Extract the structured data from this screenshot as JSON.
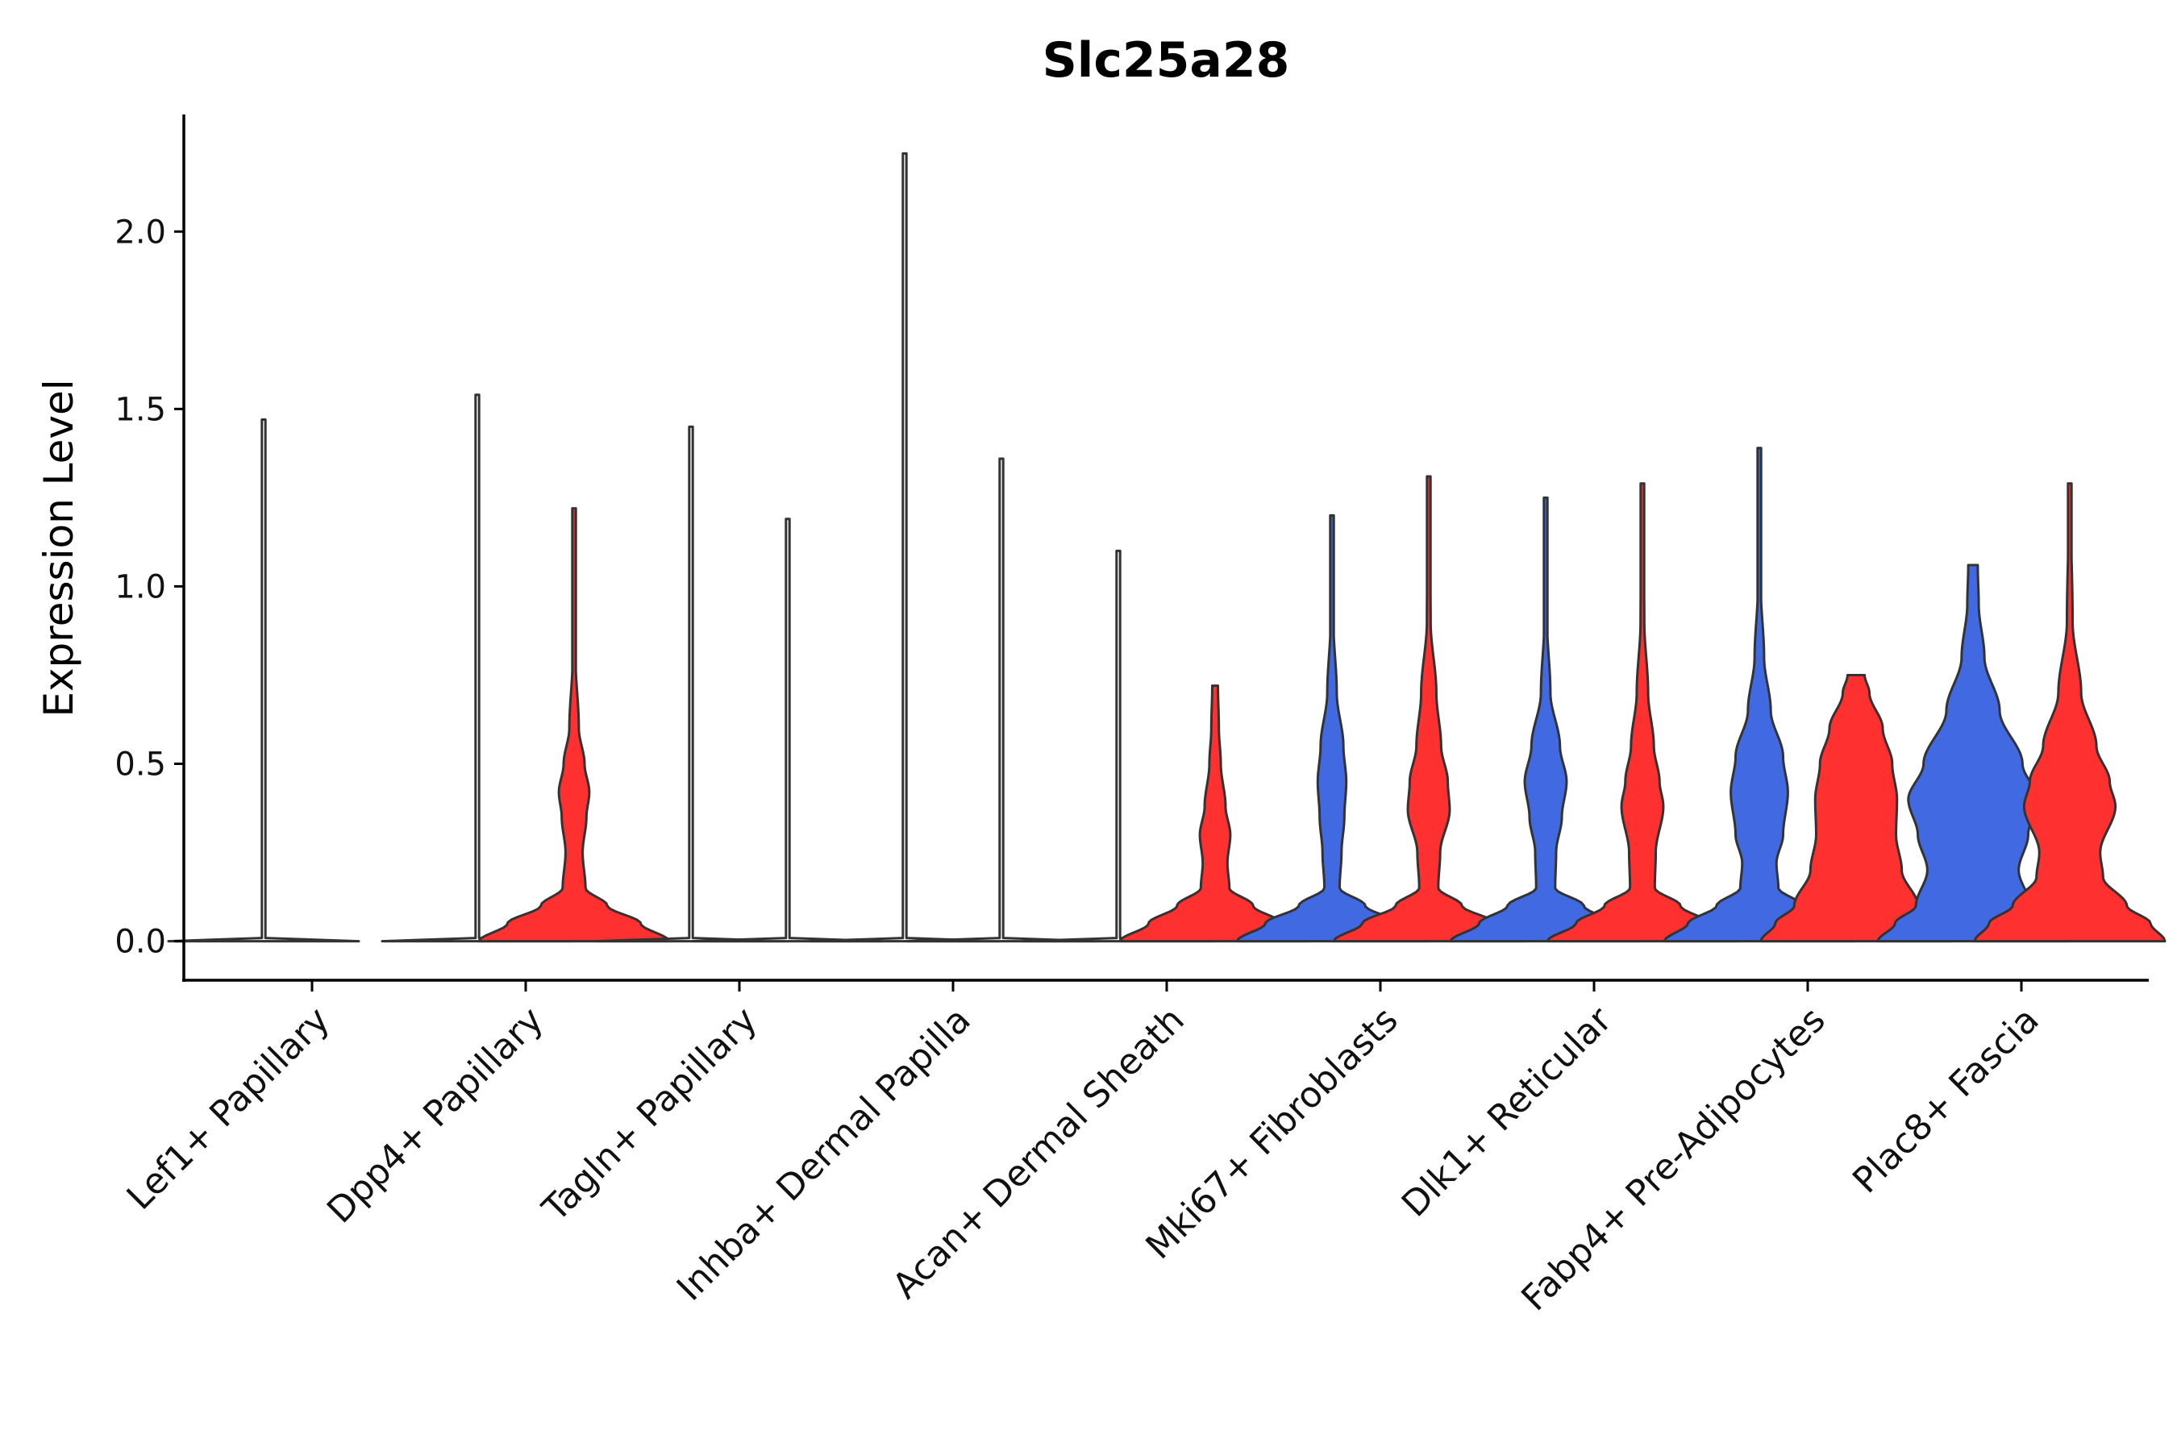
{
  "chart_data": {
    "type": "violin",
    "title": "Slc25a28",
    "xlabel": "",
    "ylabel": "Expression Level",
    "ylim": [
      -0.11,
      2.33
    ],
    "yticks": [
      "0.0",
      "0.5",
      "1.0",
      "1.5",
      "2.0"
    ],
    "ytick_values": [
      0,
      0.5,
      1.0,
      1.5,
      2.0
    ],
    "grid": false,
    "legend": "none",
    "colors": {
      "group_a": "#4169E1",
      "group_b": "#FF3030",
      "empty": "#ffffff",
      "outline": "#333333"
    },
    "categories": [
      "Lef1+ Papillary",
      "Dpp4+ Papillary",
      "Tagln+ Papillary",
      "Inhba+ Dermal Papilla",
      "Acan+ Dermal Sheath",
      "Mki67+ Fibroblasts",
      "Dlk1+ Reticular",
      "Fabp4+ Pre-Adipocytes",
      "Plac8+ Fascia"
    ],
    "violins": [
      {
        "category": 0,
        "side": "left",
        "group": "empty",
        "max": 1.47,
        "profile": "flat"
      },
      {
        "category": 1,
        "side": "left",
        "group": "empty",
        "max": 1.54,
        "profile": "flat"
      },
      {
        "category": 1,
        "side": "right",
        "group": "group_b",
        "max": 1.22,
        "profile": "low",
        "shape": [
          [
            0,
            1.0
          ],
          [
            0.05,
            0.7
          ],
          [
            0.1,
            0.35
          ],
          [
            0.15,
            0.12
          ],
          [
            0.25,
            0.09
          ],
          [
            0.35,
            0.13
          ],
          [
            0.42,
            0.16
          ],
          [
            0.5,
            0.11
          ],
          [
            0.6,
            0.05
          ],
          [
            0.8,
            0.015
          ],
          [
            1.22,
            0.004
          ]
        ]
      },
      {
        "category": 2,
        "side": "left",
        "group": "empty",
        "max": 1.45,
        "profile": "flat"
      },
      {
        "category": 2,
        "side": "right",
        "group": "empty",
        "max": 1.19,
        "profile": "flat"
      },
      {
        "category": 3,
        "side": "left",
        "group": "empty",
        "max": 2.22,
        "profile": "flat"
      },
      {
        "category": 3,
        "side": "right",
        "group": "empty",
        "max": 1.36,
        "profile": "flat"
      },
      {
        "category": 4,
        "side": "left",
        "group": "empty",
        "max": 1.1,
        "profile": "flat"
      },
      {
        "category": 4,
        "side": "right",
        "group": "group_b",
        "max": 0.72,
        "profile": "mid",
        "shape": [
          [
            0,
            1.0
          ],
          [
            0.05,
            0.7
          ],
          [
            0.1,
            0.4
          ],
          [
            0.15,
            0.15
          ],
          [
            0.22,
            0.13
          ],
          [
            0.3,
            0.16
          ],
          [
            0.38,
            0.11
          ],
          [
            0.5,
            0.06
          ],
          [
            0.6,
            0.04
          ],
          [
            0.72,
            0.03
          ]
        ]
      },
      {
        "category": 5,
        "side": "left",
        "group": "group_a",
        "max": 1.2,
        "profile": "mid",
        "shape": [
          [
            0,
            1.0
          ],
          [
            0.05,
            0.7
          ],
          [
            0.1,
            0.35
          ],
          [
            0.15,
            0.08
          ],
          [
            0.25,
            0.1
          ],
          [
            0.35,
            0.13
          ],
          [
            0.45,
            0.15
          ],
          [
            0.55,
            0.12
          ],
          [
            0.7,
            0.05
          ],
          [
            0.9,
            0.015
          ],
          [
            1.2,
            0.004
          ]
        ]
      },
      {
        "category": 5,
        "side": "right",
        "group": "group_b",
        "max": 1.31,
        "profile": "mid",
        "shape": [
          [
            0,
            1.0
          ],
          [
            0.05,
            0.7
          ],
          [
            0.1,
            0.35
          ],
          [
            0.15,
            0.1
          ],
          [
            0.25,
            0.12
          ],
          [
            0.37,
            0.22
          ],
          [
            0.45,
            0.2
          ],
          [
            0.55,
            0.13
          ],
          [
            0.7,
            0.08
          ],
          [
            0.9,
            0.02
          ],
          [
            1.31,
            0.004
          ]
        ]
      },
      {
        "category": 6,
        "side": "left",
        "group": "group_a",
        "max": 1.25,
        "profile": "mid",
        "shape": [
          [
            0,
            1.0
          ],
          [
            0.05,
            0.7
          ],
          [
            0.1,
            0.4
          ],
          [
            0.15,
            0.1
          ],
          [
            0.25,
            0.11
          ],
          [
            0.35,
            0.17
          ],
          [
            0.45,
            0.22
          ],
          [
            0.55,
            0.15
          ],
          [
            0.7,
            0.05
          ],
          [
            0.9,
            0.015
          ],
          [
            1.25,
            0.004
          ]
        ]
      },
      {
        "category": 6,
        "side": "right",
        "group": "group_b",
        "max": 1.29,
        "profile": "mid",
        "shape": [
          [
            0,
            1.0
          ],
          [
            0.05,
            0.7
          ],
          [
            0.1,
            0.4
          ],
          [
            0.15,
            0.13
          ],
          [
            0.25,
            0.14
          ],
          [
            0.38,
            0.22
          ],
          [
            0.45,
            0.18
          ],
          [
            0.55,
            0.12
          ],
          [
            0.7,
            0.06
          ],
          [
            0.9,
            0.02
          ],
          [
            1.29,
            0.004
          ]
        ]
      },
      {
        "category": 7,
        "side": "left",
        "group": "group_a",
        "max": 1.39,
        "profile": "wide",
        "shape": [
          [
            0,
            1.0
          ],
          [
            0.05,
            0.75
          ],
          [
            0.1,
            0.45
          ],
          [
            0.15,
            0.2
          ],
          [
            0.22,
            0.18
          ],
          [
            0.3,
            0.25
          ],
          [
            0.42,
            0.3
          ],
          [
            0.52,
            0.25
          ],
          [
            0.65,
            0.12
          ],
          [
            0.8,
            0.05
          ],
          [
            1.0,
            0.015
          ],
          [
            1.39,
            0.004
          ]
        ]
      },
      {
        "category": 7,
        "side": "right",
        "group": "group_b",
        "max": 0.75,
        "profile": "wide",
        "shape": [
          [
            0,
            1.0
          ],
          [
            0.05,
            0.85
          ],
          [
            0.1,
            0.65
          ],
          [
            0.2,
            0.48
          ],
          [
            0.3,
            0.42
          ],
          [
            0.4,
            0.43
          ],
          [
            0.5,
            0.38
          ],
          [
            0.6,
            0.28
          ],
          [
            0.7,
            0.14
          ],
          [
            0.75,
            0.09
          ]
        ]
      },
      {
        "category": 8,
        "side": "left",
        "group": "group_a",
        "max": 1.06,
        "profile": "wide",
        "shape": [
          [
            0,
            1.0
          ],
          [
            0.05,
            0.82
          ],
          [
            0.1,
            0.6
          ],
          [
            0.2,
            0.48
          ],
          [
            0.3,
            0.58
          ],
          [
            0.4,
            0.68
          ],
          [
            0.5,
            0.52
          ],
          [
            0.65,
            0.28
          ],
          [
            0.8,
            0.12
          ],
          [
            0.95,
            0.06
          ],
          [
            1.06,
            0.05
          ]
        ]
      },
      {
        "category": 8,
        "side": "right",
        "group": "group_b",
        "max": 1.29,
        "profile": "wide",
        "shape": [
          [
            0,
            1.0
          ],
          [
            0.05,
            0.85
          ],
          [
            0.1,
            0.6
          ],
          [
            0.18,
            0.35
          ],
          [
            0.25,
            0.32
          ],
          [
            0.38,
            0.48
          ],
          [
            0.45,
            0.42
          ],
          [
            0.55,
            0.28
          ],
          [
            0.7,
            0.12
          ],
          [
            0.9,
            0.03
          ],
          [
            1.29,
            0.004
          ]
        ]
      }
    ]
  }
}
